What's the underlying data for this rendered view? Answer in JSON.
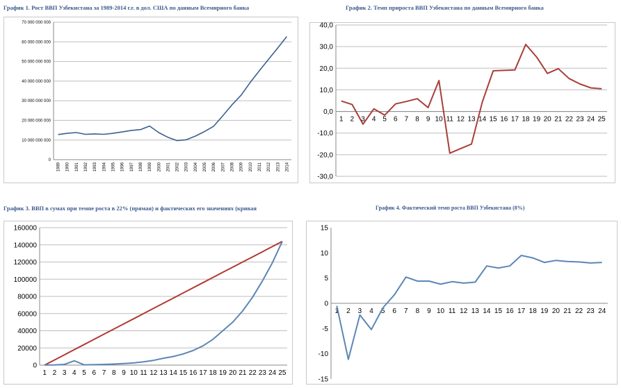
{
  "chart_data": [
    {
      "type": "line",
      "title": "График 1. Рост ВВП Узбекистана за 1989-2014 г.г. в дол. США по данным Всемирного банка",
      "x": [
        "1989",
        "1990",
        "1991",
        "1992",
        "1993",
        "1994",
        "1995",
        "1996",
        "1997",
        "1998",
        "1999",
        "2000",
        "2001",
        "2002",
        "2003",
        "2004",
        "2005",
        "2006",
        "2007",
        "2008",
        "2009",
        "2010",
        "2011",
        "2012",
        "2013",
        "2014"
      ],
      "y_ticks": [
        "0",
        "10 000 000 000",
        "20 000 000 000",
        "30 000 000 000",
        "40 000 000 000",
        "50 000 000 000",
        "60 000 000 000",
        "70 000 000 000"
      ],
      "ylim": [
        0,
        70000000000
      ],
      "series": [
        {
          "color": "#3a5f8f",
          "values": [
            12800000000,
            13400000000,
            13800000000,
            12900000000,
            13100000000,
            12900000000,
            13400000000,
            14100000000,
            14900000000,
            15300000000,
            17100000000,
            13800000000,
            11400000000,
            9700000000,
            10100000000,
            12000000000,
            14300000000,
            17000000000,
            22300000000,
            27900000000,
            32800000000,
            39300000000,
            45300000000,
            51100000000,
            56800000000,
            62700000000
          ]
        }
      ]
    },
    {
      "type": "line",
      "title": "График 2. Темп прироста ВВП Узбекистана по данным Всемирного банка",
      "x": [
        "1",
        "2",
        "3",
        "4",
        "5",
        "6",
        "7",
        "8",
        "9",
        "10",
        "11",
        "12",
        "13",
        "14",
        "15",
        "16",
        "17",
        "18",
        "19",
        "20",
        "21",
        "22",
        "23",
        "24",
        "25"
      ],
      "y_ticks": [
        "-30,0",
        "-20,0",
        "-10,0",
        "0,0",
        "10,0",
        "20,0",
        "30,0",
        "40,0"
      ],
      "ylim": [
        -30,
        40
      ],
      "series": [
        {
          "color": "#a83e3a",
          "values": [
            4.8,
            3.2,
            -5.9,
            1.2,
            -1.7,
            3.5,
            4.6,
            5.9,
            1.8,
            14.3,
            -19.3,
            -17.2,
            -15.1,
            4.4,
            18.8,
            19.0,
            19.2,
            31.0,
            25.2,
            17.6,
            19.8,
            15.2,
            12.7,
            10.9,
            10.5
          ]
        }
      ]
    },
    {
      "type": "line",
      "title": "График 3. ВВП в сумах при темпе роста в 22% (прямая) и фактических его значениях (кривая",
      "x": [
        "1",
        "2",
        "3",
        "4",
        "5",
        "6",
        "7",
        "8",
        "9",
        "10",
        "11",
        "12",
        "13",
        "14",
        "15",
        "16",
        "17",
        "18",
        "19",
        "20",
        "21",
        "22",
        "23",
        "24",
        "25"
      ],
      "y_ticks": [
        "0",
        "20000",
        "40000",
        "60000",
        "80000",
        "100000",
        "120000",
        "140000",
        "160000"
      ],
      "ylim": [
        0,
        160000
      ],
      "series": [
        {
          "color": "#b03a32",
          "values": [
            0,
            6000,
            12000,
            18000,
            24000,
            30000,
            36000,
            42000,
            48000,
            54000,
            60000,
            66000,
            72000,
            78000,
            84000,
            90000,
            96000,
            102000,
            108000,
            114000,
            120000,
            126000,
            132000,
            138000,
            144000
          ]
        },
        {
          "color": "#5b86b5",
          "values": [
            100,
            200,
            800,
            5000,
            300,
            500,
            800,
            1200,
            1800,
            2500,
            3800,
            5500,
            8000,
            10000,
            13000,
            17000,
            22500,
            30000,
            40000,
            50000,
            63000,
            79000,
            98000,
            119000,
            144000
          ]
        }
      ]
    },
    {
      "type": "line",
      "title": "График 4. Фактический темп роста ВВП Узбекистана (8%)",
      "x": [
        "1",
        "2",
        "3",
        "4",
        "5",
        "6",
        "7",
        "8",
        "9",
        "10",
        "11",
        "12",
        "13",
        "14",
        "15",
        "16",
        "17",
        "18",
        "19",
        "20",
        "21",
        "22",
        "23",
        "24"
      ],
      "y_ticks": [
        "-15",
        "-10",
        "-5",
        "0",
        "5",
        "10",
        "15"
      ],
      "ylim": [
        -15,
        15
      ],
      "series": [
        {
          "color": "#5b86b5",
          "values": [
            -0.5,
            -11.1,
            -2.3,
            -5.2,
            -0.9,
            1.7,
            5.2,
            4.4,
            4.4,
            3.8,
            4.3,
            4.0,
            4.2,
            7.4,
            7.0,
            7.4,
            9.5,
            9.0,
            8.1,
            8.5,
            8.3,
            8.2,
            8.0,
            8.1
          ]
        }
      ]
    }
  ]
}
